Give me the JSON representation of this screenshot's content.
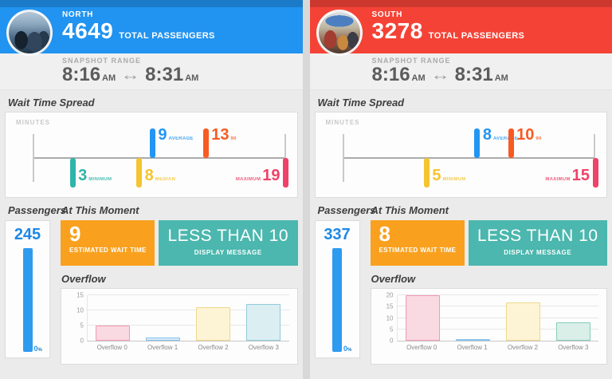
{
  "panels": [
    {
      "station": "NORTH",
      "accent_color": "#2193f0",
      "total_passengers": "4649",
      "total_passengers_label": "TOTAL PASSENGERS",
      "snapshot": {
        "label": "SNAPSHOT RANGE",
        "start_time": "8:16",
        "start_meridiem": "AM",
        "end_time": "8:31",
        "end_meridiem": "AM"
      },
      "titles": {
        "wait_spread": "Wait Time Spread",
        "passengers": "Passengers",
        "moment": "At This Moment",
        "overflow": "Overflow"
      },
      "units_label": "MINUTES",
      "passengers": {
        "count": "245",
        "baseline_value": "0",
        "baseline_suffix": "%"
      },
      "moment": {
        "wait_value": "9",
        "wait_label": "ESTIMATED WAIT TIME",
        "message": "LESS THAN 10",
        "message_label": "DISPLAY MESSAGE"
      }
    },
    {
      "station": "SOUTH",
      "accent_color": "#f44336",
      "total_passengers": "3278",
      "total_passengers_label": "TOTAL PASSENGERS",
      "snapshot": {
        "label": "SNAPSHOT RANGE",
        "start_time": "8:16",
        "start_meridiem": "AM",
        "end_time": "8:31",
        "end_meridiem": "AM"
      },
      "titles": {
        "wait_spread": "Wait Time Spread",
        "passengers": "Passengers",
        "moment": "At This Moment",
        "overflow": "Overflow"
      },
      "units_label": "MINUTES",
      "passengers": {
        "count": "337",
        "baseline_value": "0",
        "baseline_suffix": "%"
      },
      "moment": {
        "wait_value": "8",
        "wait_label": "ESTIMATED WAIT TIME",
        "message": "LESS THAN 10",
        "message_label": "DISPLAY MESSAGE"
      }
    }
  ],
  "chart_data": [
    {
      "type": "scatter",
      "title": "Wait Time Spread - North",
      "xlabel": "MINUTES",
      "xlim": [
        0,
        19
      ],
      "points": [
        {
          "x": 3,
          "label": "MINIMUM",
          "side": "below",
          "color": "#2fb4a9"
        },
        {
          "x": 8,
          "label": "MEDIAN",
          "side": "below",
          "color": "#f5c430"
        },
        {
          "x": 9,
          "label": "AVERAGE",
          "side": "above",
          "color": "#2395f2"
        },
        {
          "x": 13,
          "label": "90",
          "side": "above",
          "color": "#f75b22"
        },
        {
          "x": 19,
          "label": "MAXIMUM",
          "side": "below",
          "color": "#ee4269",
          "label_position": "before"
        }
      ]
    },
    {
      "type": "scatter",
      "title": "Wait Time Spread - South",
      "xlabel": "MINUTES",
      "xlim": [
        0,
        15
      ],
      "points": [
        {
          "x": 5,
          "label": "MINIMUM",
          "side": "below",
          "color": "#f5c430"
        },
        {
          "x": 8,
          "label": "AVERAGE",
          "side": "above",
          "color": "#2395f2"
        },
        {
          "x": 10,
          "label": "90",
          "side": "above",
          "color": "#f75b22"
        },
        {
          "x": 15,
          "label": "MAXIMUM",
          "side": "below",
          "color": "#ee4269",
          "label_position": "before"
        }
      ]
    },
    {
      "type": "bar",
      "title": "Overflow - North",
      "categories": [
        "Overflow 0",
        "Overflow 1",
        "Overflow 2",
        "Overflow 3"
      ],
      "values": [
        5,
        1,
        11,
        12
      ],
      "ylim": [
        0,
        15
      ],
      "yticks": [
        0,
        5,
        10,
        15
      ],
      "bar_fills": [
        "#f9d9e2",
        "#d8ecfa",
        "#fdf4d5",
        "#dbeff2"
      ],
      "bar_borders": [
        "#f29bb2",
        "#85c2ed",
        "#efd98c",
        "#8fc9db"
      ]
    },
    {
      "type": "bar",
      "title": "Overflow - South",
      "categories": [
        "Overflow 0",
        "Overflow 1",
        "Overflow 2",
        "Overflow 3"
      ],
      "values": [
        20,
        0.3,
        17,
        8
      ],
      "ylim": [
        0,
        20
      ],
      "yticks": [
        0,
        5,
        10,
        15,
        20
      ],
      "bar_fills": [
        "#f9d9e2",
        "#d8ecfa",
        "#fdf4d5",
        "#d9efe8"
      ],
      "bar_borders": [
        "#f29bb2",
        "#85c2ed",
        "#efd98c",
        "#86cdbb"
      ]
    }
  ]
}
